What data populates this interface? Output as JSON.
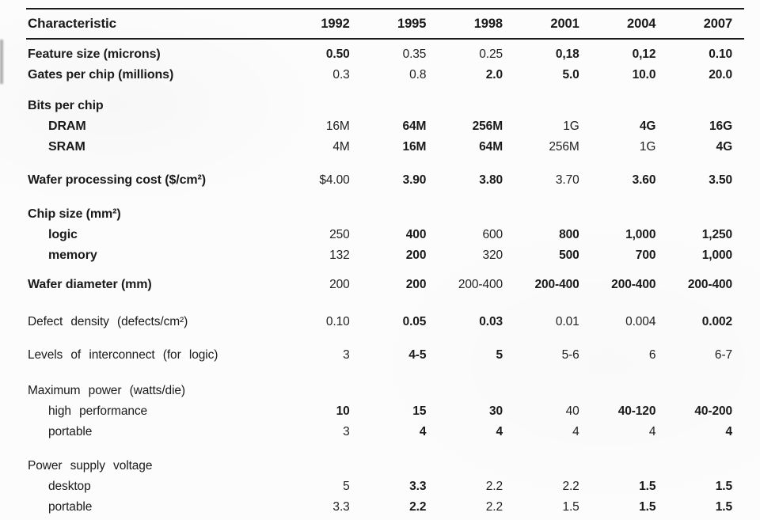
{
  "colors": {
    "background": "#fcfcfc",
    "text": "#1a1a1a",
    "rule": "#1c1c1c"
  },
  "table": {
    "header": {
      "label": "Characteristic",
      "years": [
        "1992",
        "1995",
        "1998",
        "2001",
        "2004",
        "2007"
      ]
    },
    "rows": [
      {
        "label": "Feature size (microns)",
        "values": [
          "0.50",
          "0.35",
          "0.25",
          "0,18",
          "0,12",
          "0.10"
        ]
      },
      {
        "label": "Gates per chip (millions)",
        "values": [
          "0.3",
          "0.8",
          "2.0",
          "5.0",
          "10.0",
          "20.0"
        ]
      },
      {
        "label": "Bits per chip",
        "values": []
      },
      {
        "label": "DRAM",
        "values": [
          "16M",
          "64M",
          "256M",
          "1G",
          "4G",
          "16G"
        ]
      },
      {
        "label": "SRAM",
        "values": [
          "4M",
          "16M",
          "64M",
          "256M",
          "1G",
          "4G"
        ]
      },
      {
        "label": "Wafer processing cost ($/cm²)",
        "values": [
          "$4.00",
          "3.90",
          "3.80",
          "3.70",
          "3.60",
          "3.50"
        ]
      },
      {
        "label": "Chip size (mm²)",
        "values": []
      },
      {
        "label": "logic",
        "values": [
          "250",
          "400",
          "600",
          "800",
          "1,000",
          "1,250"
        ]
      },
      {
        "label": "memory",
        "values": [
          "132",
          "200",
          "320",
          "500",
          "700",
          "1,000"
        ]
      },
      {
        "label": "Wafer diameter (mm)",
        "values": [
          "200",
          "200",
          "200-400",
          "200-400",
          "200-400",
          "200-400"
        ]
      },
      {
        "label": "Defect density (defects/cm²)",
        "values": [
          "0.10",
          "0.05",
          "0.03",
          "0.01",
          "0.004",
          "0.002"
        ]
      },
      {
        "label": "Levels of interconnect (for logic)",
        "values": [
          "3",
          "4-5",
          "5",
          "5-6",
          "6",
          "6-7"
        ]
      },
      {
        "label": "Maximum power (watts/die)",
        "values": []
      },
      {
        "label": "high performance",
        "values": [
          "10",
          "15",
          "30",
          "40",
          "40-120",
          "40-200"
        ]
      },
      {
        "label": "portable",
        "values": [
          "3",
          "4",
          "4",
          "4",
          "4",
          "4"
        ]
      },
      {
        "label": "Power supply voltage",
        "values": []
      },
      {
        "label": "desktop",
        "values": [
          "5",
          "3.3",
          "2.2",
          "2.2",
          "1.5",
          "1.5"
        ]
      },
      {
        "label": "portable",
        "values": [
          "3.3",
          "2.2",
          "2.2",
          "1.5",
          "1.5",
          "1.5"
        ]
      }
    ]
  }
}
